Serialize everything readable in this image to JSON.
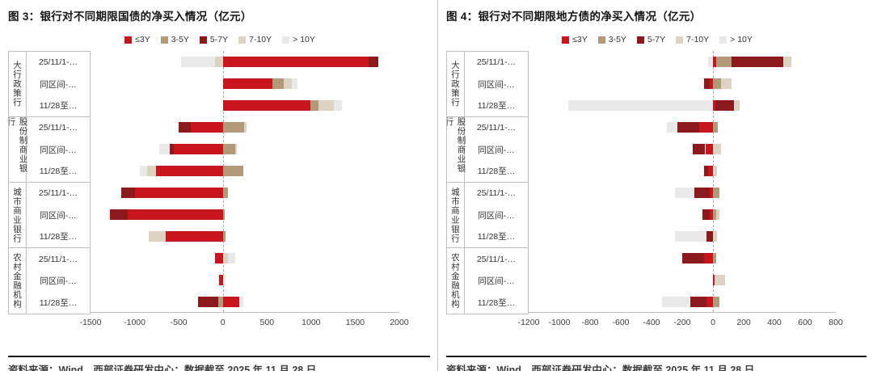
{
  "footer": {
    "source": "资料来源：Wind，西部证券研发中心；数据截至 2025 年 11 月 28 日"
  },
  "colors": {
    "le3y": "#C9151E",
    "y3_5": "#B2997A",
    "y5_7": "#8C1A1C",
    "y7_10": "#DDD3C2",
    "gt10y": "#E9E9E9"
  },
  "chart_data": "see charts",
  "charts": [
    {
      "type": "bar",
      "orientation": "horizontal-stacked",
      "title": "图 3：银行对不同期限国债的净买入情况（亿元）",
      "legend_position": "top",
      "grid": false,
      "series": [
        {
          "name": "≤3Y",
          "color": "#C9151E"
        },
        {
          "name": "3-5Y",
          "color": "#B2997A"
        },
        {
          "name": "5-7Y",
          "color": "#8C1A1C"
        },
        {
          "name": "7-10Y",
          "color": "#DDD3C2"
        },
        {
          "name": "> 10Y",
          "color": "#E9E9E9"
        }
      ],
      "axis": {
        "min": -1500,
        "max": 2000,
        "ticks": [
          -1500,
          -1000,
          -500,
          0,
          500,
          1000,
          1500,
          2000
        ],
        "tick_labels": [
          "-1500",
          "-1000",
          "-500",
          "0",
          "500",
          "1000",
          "1500",
          "2000"
        ]
      },
      "groups": [
        {
          "name": "大行政策行",
          "rows": [
            {
              "label": "25/11/1-…",
              "values": [
                1650,
                0,
                110,
                -90,
                -380
              ]
            },
            {
              "label": "同区间-…",
              "values": [
                560,
                130,
                0,
                90,
                70
              ]
            },
            {
              "label": "11/28至…",
              "values": [
                990,
                90,
                0,
                180,
                90
              ]
            }
          ]
        },
        {
          "name": "股份制商业银行",
          "rows": [
            {
              "label": "25/11/1-…",
              "values": [
                -360,
                240,
                -140,
                30,
                0
              ]
            },
            {
              "label": "同区间-…",
              "values": [
                -560,
                140,
                -40,
                20,
                -120
              ]
            },
            {
              "label": "11/28至…",
              "values": [
                -760,
                230,
                0,
                -100,
                -80
              ]
            }
          ]
        },
        {
          "name": "城市商业银行",
          "rows": [
            {
              "label": "25/11/1-…",
              "values": [
                -1000,
                60,
                -150,
                0,
                0
              ]
            },
            {
              "label": "同区间-…",
              "values": [
                -1080,
                20,
                -200,
                0,
                -20
              ]
            },
            {
              "label": "11/28至…",
              "values": [
                -650,
                30,
                0,
                -190,
                0
              ]
            }
          ]
        },
        {
          "name": "农村金融机构",
          "rows": [
            {
              "label": "25/11/1-…",
              "values": [
                -90,
                0,
                0,
                60,
                80
              ]
            },
            {
              "label": "同区间-…",
              "values": [
                -40,
                0,
                0,
                0,
                30
              ]
            },
            {
              "label": "11/28至…",
              "values": [
                190,
                -50,
                -230,
                0,
                40
              ]
            }
          ]
        }
      ]
    },
    {
      "type": "bar",
      "orientation": "horizontal-stacked",
      "title": "图 4：银行对不同期限地方债的净买入情况（亿元）",
      "legend_position": "top",
      "grid": false,
      "series": [
        {
          "name": "≤3Y",
          "color": "#C9151E"
        },
        {
          "name": "3-5Y",
          "color": "#B2997A"
        },
        {
          "name": "5-7Y",
          "color": "#8C1A1C"
        },
        {
          "name": "7-10Y",
          "color": "#DDD3C2"
        },
        {
          "name": "> 10Y",
          "color": "#E9E9E9"
        }
      ],
      "axis": {
        "min": -1200,
        "max": 800,
        "ticks": [
          -1200,
          -1000,
          -800,
          -600,
          -400,
          -200,
          0,
          200,
          400,
          600,
          800
        ],
        "tick_labels": [
          "-1200",
          "-1000",
          "-800",
          "-600",
          "-400",
          "-200",
          "0",
          "200",
          "400",
          "600",
          "800"
        ]
      },
      "groups": [
        {
          "name": "大行政策行",
          "rows": [
            {
              "label": "25/11/1-…",
              "values": [
                20,
                100,
                340,
                50,
                -30
              ]
            },
            {
              "label": "同区间-…",
              "values": [
                -20,
                50,
                -40,
                70,
                0
              ]
            },
            {
              "label": "11/28至…",
              "values": [
                15,
                0,
                120,
                40,
                -940
              ]
            }
          ]
        },
        {
          "name": "股份制商业银行",
          "rows": [
            {
              "label": "25/11/1-…",
              "values": [
                -90,
                30,
                -140,
                0,
                -70
              ]
            },
            {
              "label": "同区间-…",
              "values": [
                -50,
                0,
                -80,
                50,
                0
              ]
            },
            {
              "label": "11/28至…",
              "values": [
                -30,
                0,
                -30,
                25,
                0
              ]
            }
          ]
        },
        {
          "name": "城市商业银行",
          "rows": [
            {
              "label": "25/11/1-…",
              "values": [
                -20,
                40,
                -100,
                0,
                -130
              ]
            },
            {
              "label": "同区间-…",
              "values": [
                -20,
                20,
                -50,
                20,
                0
              ]
            },
            {
              "label": "11/28至…",
              "values": [
                0,
                0,
                -40,
                25,
                -210
              ]
            }
          ]
        },
        {
          "name": "农村金融机构",
          "rows": [
            {
              "label": "25/11/1-…",
              "values": [
                -60,
                20,
                -140,
                0,
                0
              ]
            },
            {
              "label": "同区间-…",
              "values": [
                10,
                0,
                0,
                70,
                0
              ]
            },
            {
              "label": "11/28至…",
              "values": [
                -40,
                40,
                -110,
                0,
                -180
              ]
            }
          ]
        }
      ]
    }
  ]
}
